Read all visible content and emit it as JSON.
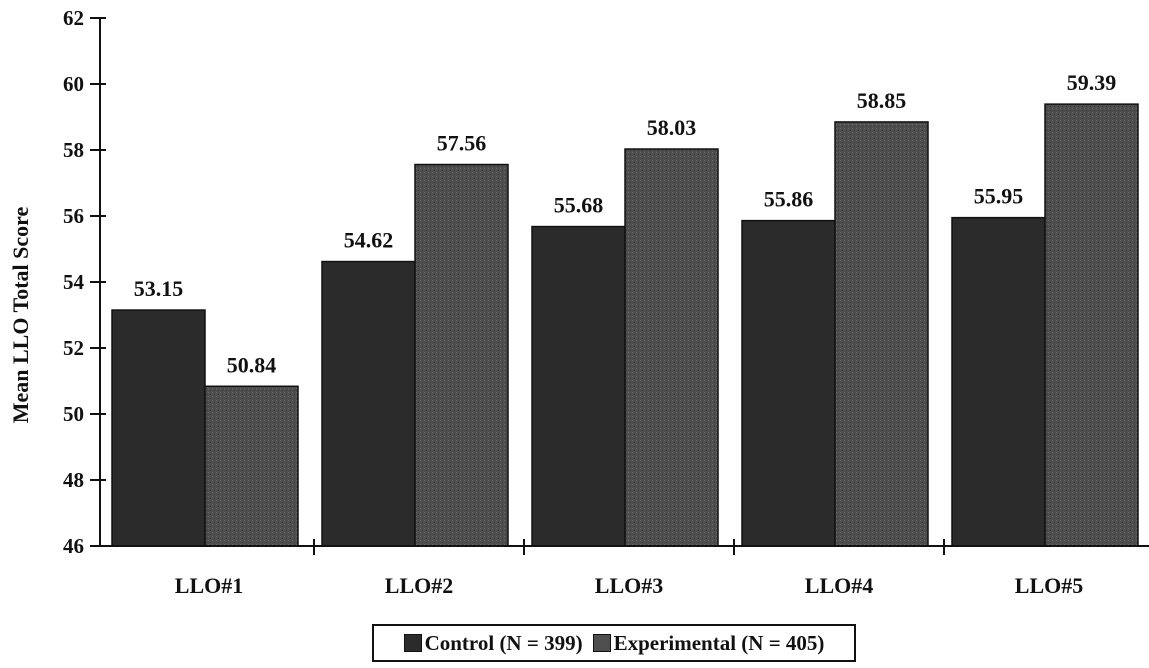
{
  "chart_data": {
    "type": "bar",
    "title": "",
    "xlabel": "",
    "ylabel": "Mean LLO Total Score",
    "ylim": [
      46,
      62
    ],
    "yticks": [
      46,
      48,
      50,
      52,
      54,
      56,
      58,
      60,
      62
    ],
    "categories": [
      "LLO#1",
      "LLO#2",
      "LLO#3",
      "LLO#4",
      "LLO#5"
    ],
    "series": [
      {
        "name": "Control (N = 399)",
        "values": [
          53.15,
          54.62,
          55.68,
          55.86,
          55.95
        ],
        "color": "#2b2b2b"
      },
      {
        "name": "Experimental (N = 405)",
        "values": [
          50.84,
          57.56,
          58.03,
          58.85,
          59.39
        ],
        "color": "#4e4e4e"
      }
    ],
    "value_labels": [
      [
        "53.15",
        "54.62",
        "55.68",
        "55.86",
        "55.95"
      ],
      [
        "50.84",
        "57.56",
        "58.03",
        "58.85",
        "59.39"
      ]
    ],
    "legend_position": "bottom-center",
    "grid": false
  }
}
